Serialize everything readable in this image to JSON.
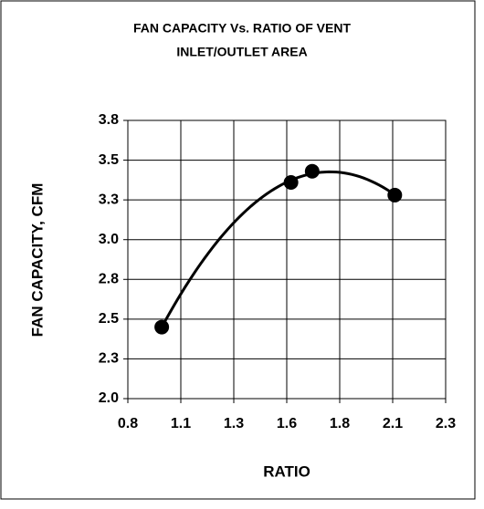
{
  "chart_data": {
    "type": "scatter",
    "title": [
      "FAN CAPACITY Vs. RATIO OF VENT",
      "INLET/OUTLET AREA"
    ],
    "x_label": "RATIO",
    "y_label": "FAN CAPACITY, CFM",
    "series": [
      {
        "name": "Fan capacity",
        "color": "#000000",
        "x": [
          0.96,
          1.57,
          1.67,
          2.06
        ],
        "values": [
          2.45,
          3.36,
          3.43,
          3.28
        ]
      }
    ],
    "trendline": {
      "type": "polynomial",
      "order": 2,
      "color": "#000000"
    },
    "xlim": [
      0.8,
      2.3
    ],
    "xticks": [
      0.8,
      {
        "value": 1.05,
        "label": "1.1"
      },
      1.3,
      {
        "value": 1.55,
        "label": "1.6"
      },
      1.8,
      {
        "value": 2.05,
        "label": "2.1"
      },
      2.3
    ],
    "ylim": [
      2.0,
      3.75
    ],
    "yticks": [
      {
        "value": 2.0,
        "label": "2.0"
      },
      {
        "value": 2.25,
        "label": "2.3"
      },
      {
        "value": 2.5,
        "label": "2.5"
      },
      {
        "value": 2.75,
        "label": "2.8"
      },
      {
        "value": 3.0,
        "label": "3.0"
      },
      {
        "value": 3.25,
        "label": "3.3"
      },
      {
        "value": 3.5,
        "label": "3.5"
      },
      {
        "value": 3.75,
        "label": "3.8"
      }
    ],
    "grid": true
  }
}
